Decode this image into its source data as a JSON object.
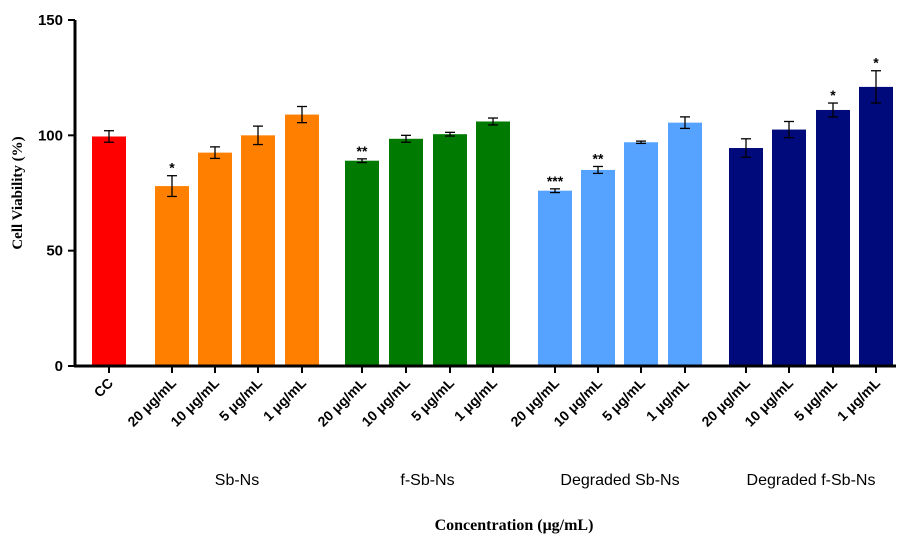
{
  "chart_data": {
    "type": "bar",
    "ylabel": "Cell Viability (%)",
    "xlabel": "Concentration (μg/mL)",
    "ylim": [
      0,
      150
    ],
    "yticks": [
      0,
      50,
      100,
      150
    ],
    "grid": false,
    "legend": "none",
    "categories": [
      "CC",
      "20 μg/mL",
      "10 μg/mL",
      "5 μg/mL",
      "1 μg/mL",
      "20 μg/mL",
      "10 μg/mL",
      "5 μg/mL",
      "1 μg/mL",
      "20 μg/mL",
      "10 μg/mL",
      "5 μg/mL",
      "1 μg/mL",
      "20 μg/mL",
      "10 μg/mL",
      "5 μg/mL",
      "1 μg/mL"
    ],
    "values": [
      99.5,
      78,
      92.5,
      100,
      109,
      89,
      98.5,
      100.5,
      106,
      76,
      85,
      97,
      105.5,
      94.5,
      102.5,
      111,
      121
    ],
    "errors": [
      2.5,
      4.5,
      2.5,
      4,
      3.5,
      0.8,
      1.5,
      0.8,
      1.5,
      0.8,
      1.5,
      0.5,
      2.5,
      4,
      3.5,
      3,
      7
    ],
    "significance": [
      "",
      "*",
      "",
      "",
      "",
      "**",
      "",
      "",
      "",
      "***",
      "**",
      "",
      "",
      "",
      "",
      "*",
      "*"
    ],
    "colors": [
      "#ff0000",
      "#ff8000",
      "#ff8000",
      "#ff8000",
      "#ff8000",
      "#007a00",
      "#007a00",
      "#007a00",
      "#007a00",
      "#55a3ff",
      "#55a3ff",
      "#55a3ff",
      "#55a3ff",
      "#000a7a",
      "#000a7a",
      "#000a7a",
      "#000a7a"
    ],
    "groups": [
      {
        "label": "Sb-Ns",
        "members": [
          1,
          2,
          3,
          4
        ]
      },
      {
        "label": "f-Sb-Ns",
        "members": [
          5,
          6,
          7,
          8
        ]
      },
      {
        "label": "Degraded Sb-Ns",
        "members": [
          9,
          10,
          11,
          12
        ]
      },
      {
        "label": "Degraded f-Sb-Ns",
        "members": [
          13,
          14,
          15,
          16
        ]
      }
    ]
  }
}
